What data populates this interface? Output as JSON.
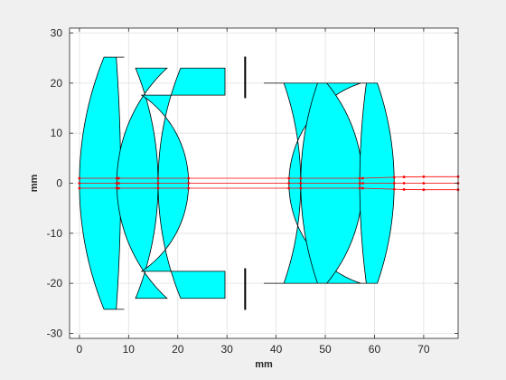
{
  "chart_data": {
    "type": "optical-layout",
    "xlabel": "mm",
    "ylabel": "mm",
    "xlim": [
      -2,
      77
    ],
    "ylim": [
      -31,
      31
    ],
    "x_ticks": [
      0,
      10,
      20,
      30,
      40,
      50,
      60,
      70
    ],
    "y_ticks": [
      -30,
      -20,
      -10,
      0,
      10,
      20,
      30
    ],
    "grid": true,
    "colors": {
      "figure_bg": "#f0f0f0",
      "axes_bg": "#ffffff",
      "lens_fill": "#00ffff",
      "lens_edge": "#000000",
      "ray": "#ff0000",
      "stop": "#000000",
      "grid": "#dfdfdf",
      "axis": "#262626"
    },
    "lens_elements": [
      {
        "name": "element-1",
        "x_front": 0.0,
        "x_back": 8.4,
        "front_radius": 66,
        "back_radius": 350,
        "front_height": 25.2,
        "back_height": 25.2,
        "edge_front": 5.6,
        "edge_back": 9.1
      },
      {
        "name": "element-2",
        "x_front": 7.6,
        "x_back": 16.0,
        "front_radius": 31,
        "back_radius": 60,
        "front_height": 23.0,
        "back_height": 23.0
      },
      {
        "name": "element-3",
        "x_front": 16.0,
        "x_back": 22.2,
        "front_radius": 60,
        "back_radius": 21,
        "front_height": 23.0,
        "back_height": 17.6,
        "edge_back": 29.6
      },
      {
        "name": "element-4",
        "x_front": 42.6,
        "x_back": 45.0,
        "front_radius": 21,
        "back_radius": 60,
        "front_height": 20.0,
        "back_height": 20.0,
        "edge_front": 37.5
      },
      {
        "name": "element-5",
        "x_front": 45.0,
        "x_back": 57.6,
        "front_radius": 60,
        "back_radius": 31,
        "front_height": 20.0,
        "back_height": 20.0
      },
      {
        "name": "element-6",
        "x_front": 57.0,
        "x_back": 64.0,
        "front_radius": 150,
        "back_radius": 60,
        "front_height": 20.0,
        "back_height": 20.0,
        "edge_front": 56.5,
        "edge_back": 60.0
      }
    ],
    "aperture_stop": {
      "x": 33.7,
      "inner_half_height": 17.0,
      "outer_half_height": 25.3
    },
    "rays": [
      {
        "y_points": [
          1.0,
          1.0,
          1.0,
          1.0,
          1.0,
          1.0,
          1.0,
          1.0,
          1.0,
          1.2,
          1.25,
          1.3,
          1.3
        ],
        "x_points": [
          0,
          7.6,
          8.0,
          16,
          22.2,
          42.6,
          45,
          57.0,
          57.6,
          64,
          66,
          70,
          77
        ]
      },
      {
        "y_points": [
          0.0,
          0.0,
          0.0,
          0.0,
          0.0,
          0.0,
          0.0,
          0.0,
          0.0,
          0.0,
          0.0,
          0.0,
          0.0
        ],
        "x_points": [
          0,
          7.6,
          8.0,
          16,
          22.2,
          42.6,
          45,
          57.0,
          57.6,
          64,
          66,
          70,
          77
        ]
      },
      {
        "y_points": [
          -1.0,
          -1.0,
          -1.0,
          -1.0,
          -1.0,
          -1.0,
          -1.0,
          -1.0,
          -1.0,
          -1.2,
          -1.25,
          -1.3,
          -1.3
        ],
        "x_points": [
          0,
          7.6,
          8.0,
          16,
          22.2,
          42.6,
          45,
          57.0,
          57.6,
          64,
          66,
          70,
          77
        ]
      }
    ]
  }
}
